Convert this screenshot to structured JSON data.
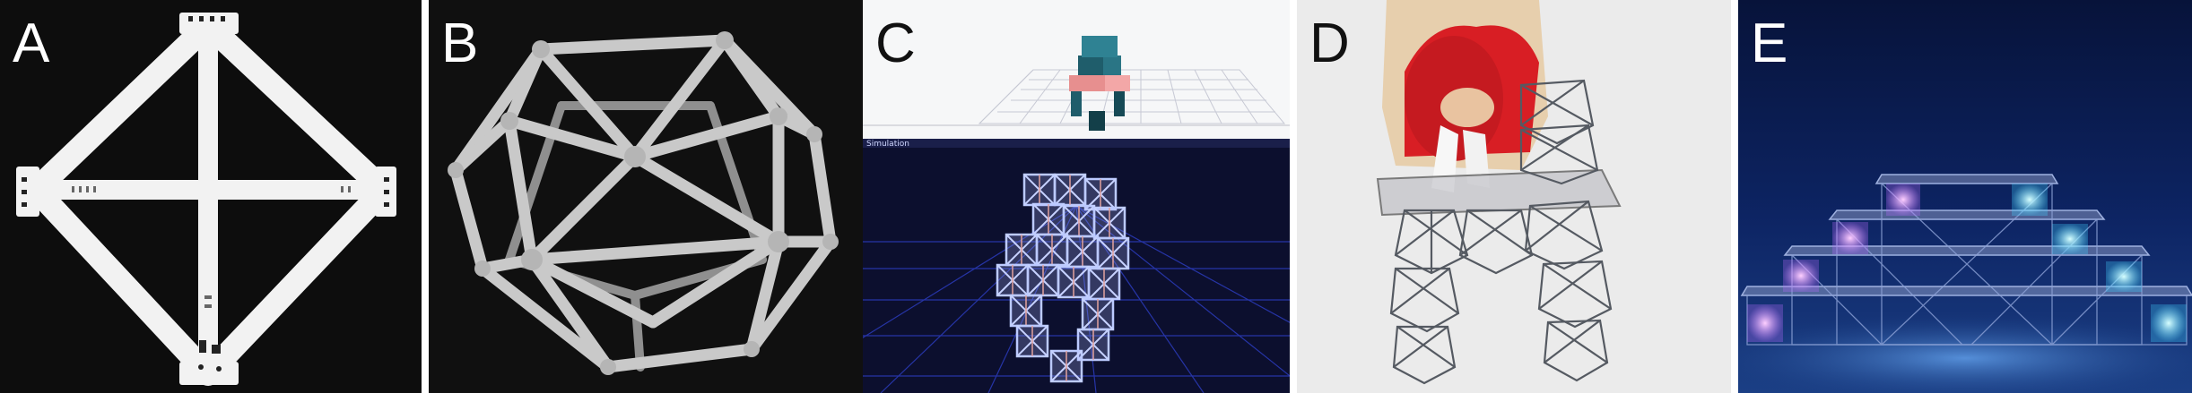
{
  "panels": [
    {
      "letter": "A"
    },
    {
      "letter": "B"
    },
    {
      "letter": "C",
      "sim_label": "Simulation"
    },
    {
      "letter": "D"
    },
    {
      "letter": "E"
    }
  ],
  "colors": {
    "panel_a_bg": "#0d0d0d",
    "panel_b_bg": "#101010",
    "panel_c_top_bg": "#f6f7f8",
    "panel_c_bottom_bg": "#0c0f2e",
    "panel_d_bg": "#ebebeb",
    "panel_e_bg": "#0b1a45",
    "letter_light": "#ffffff",
    "letter_dark": "#111111"
  }
}
